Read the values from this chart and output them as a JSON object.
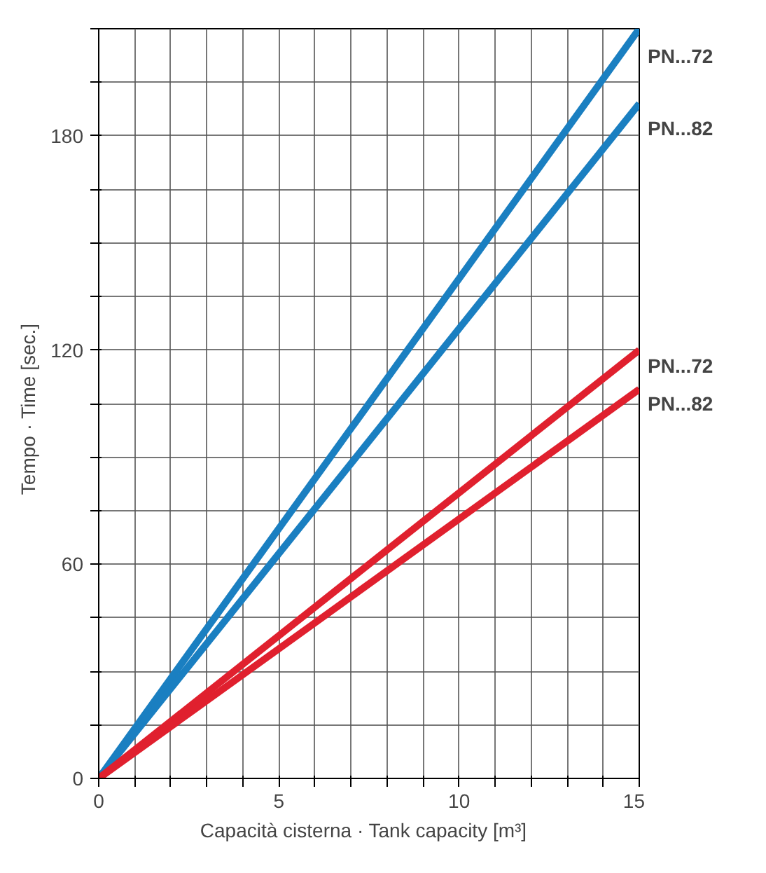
{
  "chart_data": {
    "type": "line",
    "xlabel": "Capacità cisterna · Tank capacity   [m³]",
    "ylabel": "Tempo · Time   [sec.]",
    "x": [
      0,
      15
    ],
    "xlim": [
      0,
      15
    ],
    "ylim": [
      0,
      210
    ],
    "xticks": [
      0,
      {
        "value": 1,
        "label": null
      },
      {
        "value": 2,
        "label": null
      },
      {
        "value": 3,
        "label": null
      },
      {
        "value": 4,
        "label": null
      },
      5,
      {
        "value": 6,
        "label": null
      },
      {
        "value": 7,
        "label": null
      },
      {
        "value": 8,
        "label": null
      },
      {
        "value": 9,
        "label": null
      },
      10,
      {
        "value": 11,
        "label": null
      },
      {
        "value": 12,
        "label": null
      },
      {
        "value": 13,
        "label": null
      },
      {
        "value": 14,
        "label": null
      },
      15
    ],
    "yticks": [
      0,
      {
        "value": 15,
        "label": null
      },
      {
        "value": 30,
        "label": null
      },
      {
        "value": 45,
        "label": null
      },
      60,
      {
        "value": 75,
        "label": null
      },
      {
        "value": 90,
        "label": null
      },
      {
        "value": 105,
        "label": null
      },
      120,
      {
        "value": 135,
        "label": null
      },
      {
        "value": 150,
        "label": null
      },
      {
        "value": 165,
        "label": null
      },
      180,
      {
        "value": 195,
        "label": null
      },
      {
        "value": 210,
        "label": null
      }
    ],
    "grid": true,
    "line_style": "solid",
    "marker": "none",
    "series": [
      {
        "name": "PN...72",
        "color": "#1a7fc1",
        "values": [
          0,
          210
        ]
      },
      {
        "name": "PN...82",
        "color": "#1a7fc1",
        "values": [
          0,
          189
        ]
      },
      {
        "name": "PN...72",
        "color": "#e0202e",
        "values": [
          0,
          120
        ]
      },
      {
        "name": "PN...82",
        "color": "#e0202e",
        "values": [
          0,
          109
        ]
      }
    ]
  }
}
